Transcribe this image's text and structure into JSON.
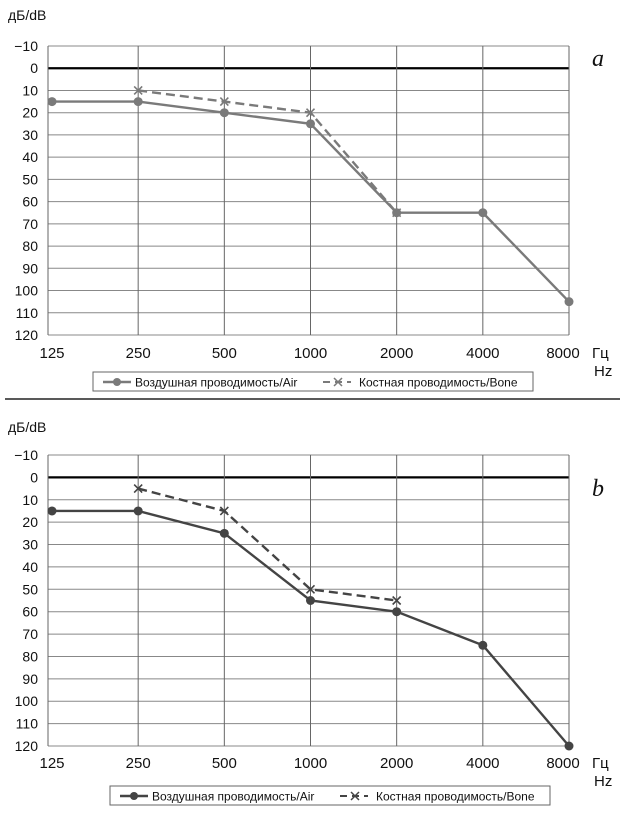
{
  "chart_data": [
    {
      "type": "line",
      "panel_label": "a",
      "ylabel": "дБ/dB",
      "xlabel": [
        "Гц",
        "Hz"
      ],
      "categories": [
        "125",
        "250",
        "500",
        "1000",
        "2000",
        "4000",
        "8000"
      ],
      "yticks": [
        -10,
        0,
        10,
        20,
        30,
        40,
        50,
        60,
        70,
        80,
        90,
        100,
        110,
        120
      ],
      "ylim": [
        120,
        -10
      ],
      "y_inverted": true,
      "grid": true,
      "legend_position": "bottom",
      "series": [
        {
          "name": "Воздушная проводимость/Air",
          "marker": "circle",
          "dash": "solid",
          "color": "#7a7a7a",
          "values": [
            15,
            15,
            20,
            25,
            65,
            65,
            105
          ]
        },
        {
          "name": "Костная проводимость/Bone",
          "marker": "x",
          "dash": "dashed",
          "color": "#7a7a7a",
          "values": [
            null,
            10,
            15,
            20,
            65,
            null,
            null
          ]
        }
      ]
    },
    {
      "type": "line",
      "panel_label": "b",
      "ylabel": "дБ/dB",
      "xlabel": [
        "Гц",
        "Hz"
      ],
      "categories": [
        "125",
        "250",
        "500",
        "1000",
        "2000",
        "4000",
        "8000"
      ],
      "yticks": [
        -10,
        0,
        10,
        20,
        30,
        40,
        50,
        60,
        70,
        80,
        90,
        100,
        110,
        120
      ],
      "ylim": [
        120,
        -10
      ],
      "y_inverted": true,
      "grid": true,
      "legend_position": "bottom",
      "series": [
        {
          "name": "Воздушная проводимость/Air",
          "marker": "circle",
          "dash": "solid",
          "color": "#444444",
          "values": [
            15,
            15,
            25,
            55,
            60,
            75,
            120
          ]
        },
        {
          "name": "Костная проводимость/Bone",
          "marker": "x",
          "dash": "dashed",
          "color": "#444444",
          "values": [
            null,
            5,
            15,
            50,
            55,
            null,
            null
          ]
        }
      ]
    }
  ]
}
